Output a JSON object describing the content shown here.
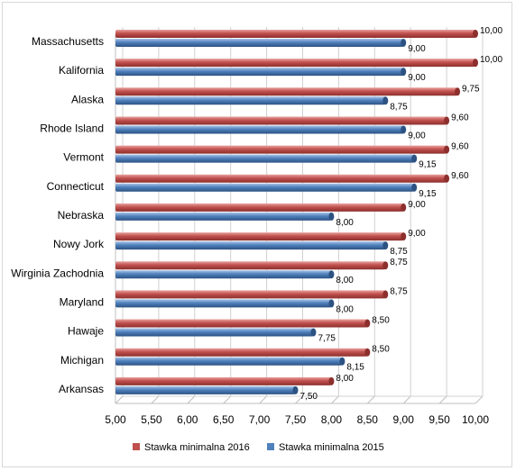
{
  "chart_data": {
    "type": "bar",
    "orientation": "horizontal",
    "categories": [
      "Massachusetts",
      "Kalifornia",
      "Alaska",
      "Rhode Island",
      "Vermont",
      "Connecticut",
      "Nebraska",
      "Nowy Jork",
      "Wirginia Zachodnia",
      "Maryland",
      "Hawaje",
      "Michigan",
      "Arkansas"
    ],
    "series": [
      {
        "name": "Stawka minimalna 2016",
        "color": "#c0504d",
        "values": [
          10.0,
          10.0,
          9.75,
          9.6,
          9.6,
          9.6,
          9.0,
          9.0,
          8.75,
          8.75,
          8.5,
          8.5,
          8.0
        ],
        "labels": [
          "10,00",
          "10,00",
          "9,75",
          "9,60",
          "9,60",
          "9,60",
          "9,00",
          "9,00",
          "8,75",
          "8,75",
          "8,50",
          "8,50",
          "8,00"
        ]
      },
      {
        "name": "Stawka minimalna 2015",
        "color": "#4f81bd",
        "values": [
          9.0,
          9.0,
          8.75,
          9.0,
          9.15,
          9.15,
          8.0,
          8.75,
          8.0,
          8.0,
          7.75,
          8.15,
          7.5
        ],
        "labels": [
          "9,00",
          "9,00",
          "8,75",
          "9,00",
          "9,15",
          "9,15",
          "8,00",
          "8,75",
          "8,00",
          "8,00",
          "7,75",
          "8,15",
          "7,50"
        ]
      }
    ],
    "xlim": [
      5.0,
      10.0
    ],
    "xticks": [
      5.0,
      5.5,
      6.0,
      6.5,
      7.0,
      7.5,
      8.0,
      8.5,
      9.0,
      9.5,
      10.0
    ],
    "xtick_labels": [
      "5,00",
      "5,50",
      "6,00",
      "6,50",
      "7,00",
      "7,50",
      "8,00",
      "8,50",
      "9,00",
      "9,50",
      "10,00"
    ],
    "grid": true,
    "legend": "bottom",
    "title": "",
    "xlabel": "",
    "ylabel": ""
  }
}
